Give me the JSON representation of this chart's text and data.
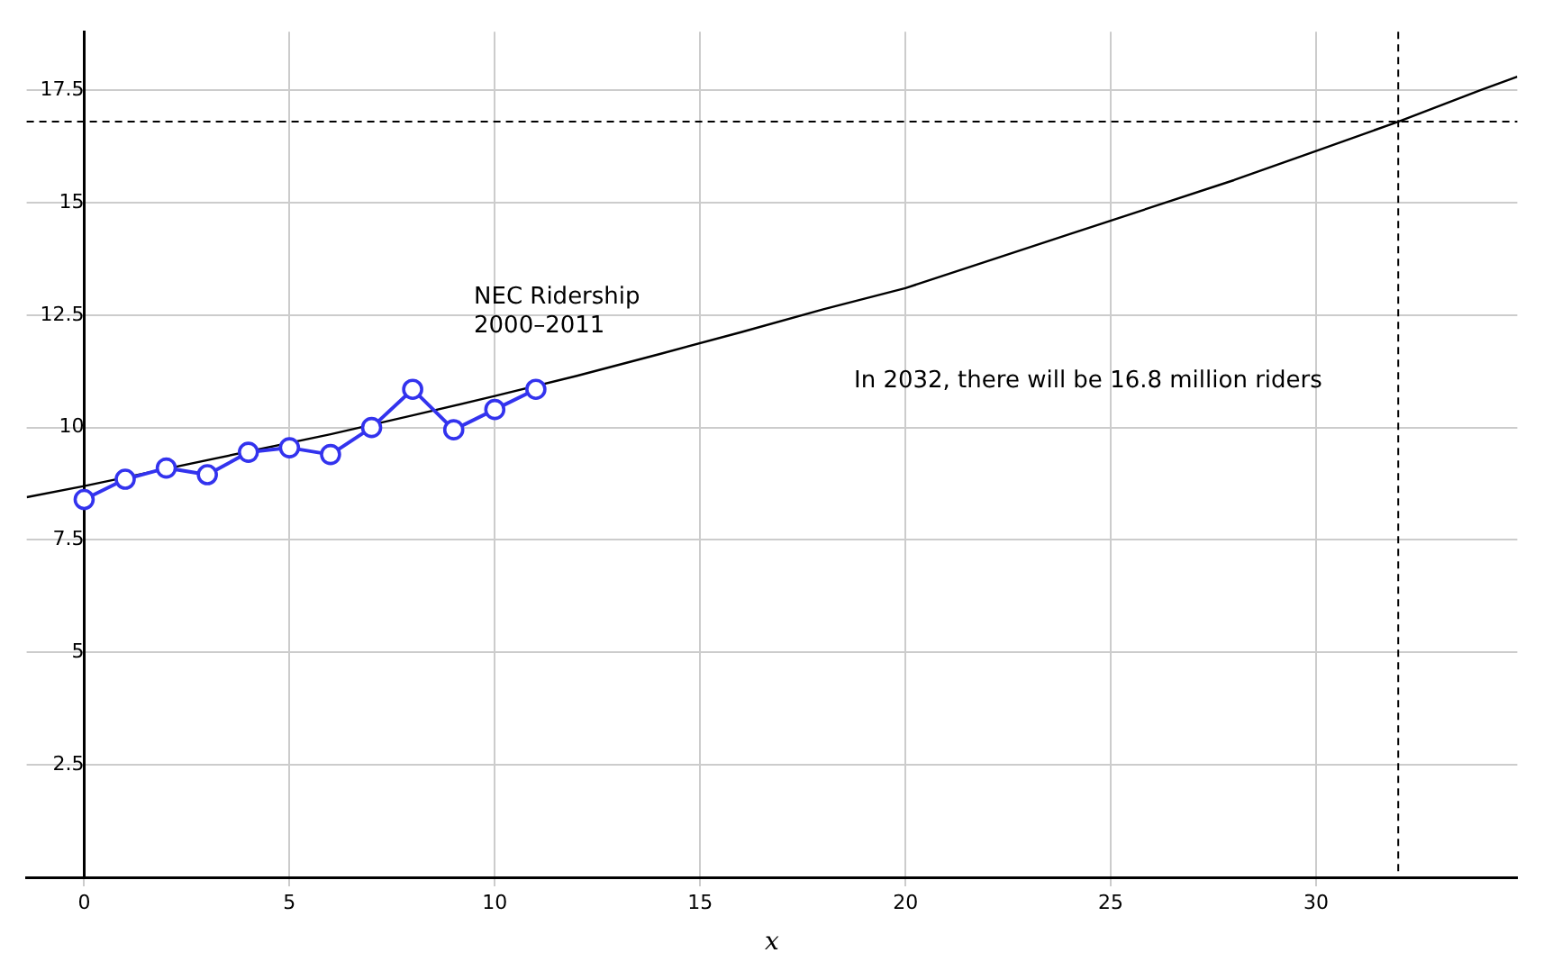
{
  "chart_data": {
    "type": "line",
    "xlabel": "x",
    "xlim": [
      -1.4,
      34.9
    ],
    "xticks": [
      0,
      5,
      10,
      15,
      20,
      25,
      30
    ],
    "ylim": [
      0,
      18.8
    ],
    "yticks": [
      2.5,
      5,
      7.5,
      10,
      12.5,
      15,
      17.5
    ],
    "grid": true,
    "legend": false,
    "series": [
      {
        "color": "#3333ee",
        "marker": "circle",
        "line_style": "solid",
        "x": [
          0,
          1,
          2,
          3,
          4,
          5,
          6,
          7,
          8,
          9,
          10,
          11
        ],
        "values": [
          8.4,
          8.85,
          9.1,
          8.95,
          9.45,
          9.55,
          9.4,
          10.0,
          10.85,
          9.95,
          10.4,
          10.85
        ]
      },
      {
        "color": "#000000",
        "marker": "none",
        "line_style": "solid",
        "x": [
          -1.4,
          0,
          6,
          8,
          10,
          12,
          14,
          16,
          18,
          20,
          22,
          24,
          26,
          28,
          30,
          32,
          34,
          34.9
        ],
        "values": [
          8.45,
          8.7,
          9.85,
          10.27,
          10.7,
          11.15,
          11.63,
          12.12,
          12.63,
          13.1,
          13.7,
          14.3,
          14.9,
          15.5,
          16.15,
          16.8,
          17.5,
          17.8
        ]
      }
    ],
    "ref_lines": [
      {
        "axis": "y",
        "value": 16.8,
        "color": "#000000",
        "line_style": "dashed"
      },
      {
        "axis": "x",
        "value": 32,
        "color": "#000000",
        "line_style": "dashed"
      }
    ],
    "annotations": [
      "NEC Ridership\n2000–2011",
      "In 2032, there will be 16.8 million riders"
    ]
  }
}
